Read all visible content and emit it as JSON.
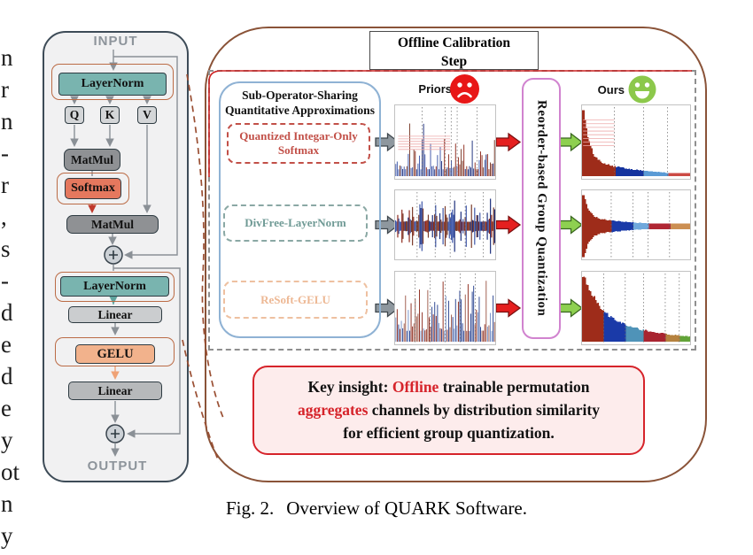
{
  "left_margin": {
    "fragments": [
      "n",
      "r",
      "n",
      "-",
      "r",
      ",",
      "s",
      "-",
      "d",
      "e",
      "d",
      "e",
      "y",
      "ot",
      "n",
      "y"
    ]
  },
  "diagram": {
    "input": "INPUT",
    "output": "OUTPUT",
    "layernorm": "LayerNorm",
    "q": "Q",
    "k": "K",
    "v": "V",
    "matmul": "MatMul",
    "softmax": "Softmax",
    "linear": "Linear",
    "gelu": "GELU",
    "plus": "+"
  },
  "calibration": {
    "title_lines": [
      "Offline Calibration",
      "Step"
    ],
    "approx_panel": {
      "title_line1": "Sub-Operator-Sharing",
      "title_line2": "Quantitative Approximations",
      "ops": [
        {
          "label": "Quantized Integar-Only Softmax"
        },
        {
          "label": "DivFree-LayerNorm"
        },
        {
          "label": "ReSoft-GELU"
        }
      ]
    },
    "priors_label": "Priors",
    "ours_label": "Ours",
    "reorder_label": "Reorder-based Group Quantization",
    "insight_segments": [
      {
        "t": "Key insight: "
      },
      {
        "t": "Offline",
        "red": true
      },
      {
        "t": " trainable permutation"
      },
      {
        "br": true
      },
      {
        "t": "aggregates",
        "red": true
      },
      {
        "t": " channels by distribution similarity"
      },
      {
        "br": true
      },
      {
        "t": "for efficient group quantization."
      }
    ]
  },
  "caption": {
    "tag": "Fig. 2.",
    "text": "Overview of QUARK Software."
  },
  "colors": {
    "flow_gray": "#8a9096",
    "arrow_red": "#c0392b",
    "arrow_teal": "#5fa39d",
    "arrow_orange": "#efa276",
    "dashed_connector": "#9a4f33",
    "red_line": "#cc2222",
    "plus_circle": "#ccd1d6",
    "plus_border": "#3a454e",
    "gray_block_arrow": "#8e979e",
    "red_block_arrow": "#e51f1f",
    "green_block_arrow": "#8ed050",
    "sad_face": "#e81717",
    "happy_face": "#8cc84b",
    "grid_dot": "#666666",
    "hatch_pink": "#eeaaaa"
  },
  "plots": [
    {
      "priors": {
        "type": "spiky",
        "palette": [
          "#8e2a1c",
          "#1d2f7c",
          "#3d56a8",
          "#7a3b2a"
        ],
        "grid": [
          0.27,
          0.5,
          0.56,
          0.62,
          0.82
        ],
        "base": 0.1,
        "var": 0.45,
        "pow": 2.6,
        "spike_p": 0.07,
        "spike_max": 0.92,
        "hatch": {
          "x": [
            0.03,
            0.55
          ],
          "y": [
            0.42,
            0.6
          ],
          "n": 6
        }
      },
      "ours": {
        "type": "sorted",
        "decay": [
          0.95,
          0.045,
          0.28,
          0.45
        ],
        "min": 0.045,
        "groups": [
          {
            "c": "#9e2c1a",
            "f": 0.3
          },
          {
            "c": "#15339e",
            "f": 0.27
          },
          {
            "c": "#5b9bd5",
            "f": 0.22
          },
          {
            "c": "#cc4a44",
            "f": 0.21
          }
        ],
        "hatch": {
          "x": [
            0.01,
            0.3
          ],
          "y": [
            0.2,
            0.55
          ],
          "n": 8
        }
      }
    },
    {
      "priors": {
        "type": "centered",
        "palette": [
          "#8e2a1c",
          "#1d2f7c",
          "#3d56a8",
          "#7a3b2a"
        ],
        "grid": [
          0.22,
          0.4,
          0.55,
          0.7,
          0.88
        ],
        "base": 0.14,
        "var": 0.55,
        "pow": 2.8,
        "spike_p": 0.05,
        "spike_max": 0.95
      },
      "ours": {
        "type": "centered_sorted",
        "decay": [
          0.95,
          0.04,
          0.3,
          0.5
        ],
        "min": 0.09,
        "groups": [
          {
            "c": "#9e2c1a",
            "f": 0.27
          },
          {
            "c": "#1a3aa8",
            "f": 0.2
          },
          {
            "c": "#6fa8dc",
            "f": 0.14
          },
          {
            "c": "#b02633",
            "f": 0.2
          },
          {
            "c": "#cc8f52",
            "f": 0.19
          }
        ]
      }
    },
    {
      "priors": {
        "type": "spiky",
        "palette": [
          "#8e2a1c",
          "#27418f",
          "#7793c9",
          "#9e5a4a"
        ],
        "grid": [
          0.2,
          0.35,
          0.5,
          0.65,
          0.8
        ],
        "base": 0.16,
        "var": 0.62,
        "pow": 2.2,
        "spike_p": 0.12,
        "spike_max": 0.95
      },
      "ours": {
        "type": "sorted",
        "decay": [
          0.6,
          0.15,
          0.4,
          0.6
        ],
        "min": 0.05,
        "groups": [
          {
            "c": "#9e2c1a",
            "f": 0.2
          },
          {
            "c": "#1a3aa8",
            "f": 0.2
          },
          {
            "c": "#4f93b8",
            "f": 0.17
          },
          {
            "c": "#a82430",
            "f": 0.2
          },
          {
            "c": "#b5823f",
            "f": 0.13
          },
          {
            "c": "#62a338",
            "f": 0.1
          }
        ]
      }
    }
  ]
}
